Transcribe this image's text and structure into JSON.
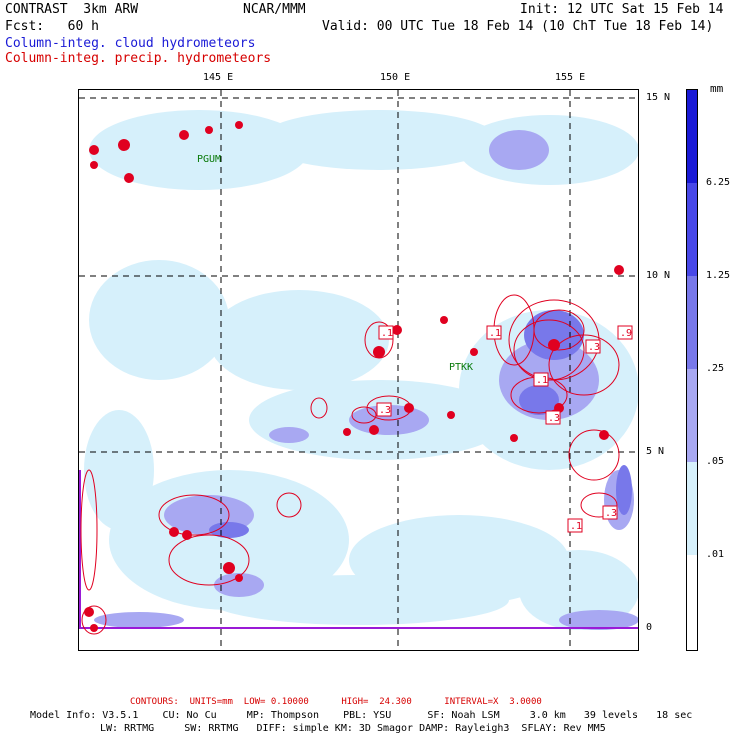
{
  "header": {
    "model": "CONTRAST  3km ARW",
    "org": "NCAR/MMM",
    "init": "Init: 12 UTC Sat 15 Feb 14",
    "fcst": "Fcst:   60 h",
    "valid": "Valid: 00 UTC Tue 18 Feb 14 (10 ChT Tue 18 Feb 14)",
    "field1": "Column-integ. cloud hydrometeors",
    "field2": "Column-integ. precip. hydrometeors"
  },
  "axes": {
    "lon_labels": [
      "145 E",
      "150 E",
      "155 E"
    ],
    "lat_labels": [
      "15 N",
      "10 N",
      "5 N",
      "0"
    ]
  },
  "stations": [
    "PGUM",
    "PTKK"
  ],
  "contour_labels": [
    ".1",
    ".1",
    ".3",
    ".9",
    ".1",
    ".3",
    ".3",
    ".1",
    ".3"
  ],
  "colorbar": {
    "unit": "mm",
    "levels": [
      "6.25",
      "1.25",
      ".25",
      ".05",
      ".01"
    ],
    "colors": [
      "#1a1ad6",
      "#4848e8",
      "#7878ea",
      "#a8a8f2",
      "#d6f0fb",
      "#ffffff"
    ]
  },
  "footer": {
    "contours": "CONTOURS:  UNITS=mm  LOW= 0.10000      HIGH=  24.300      INTERVAL=X  3.0000",
    "info1": "Model Info: V3.5.1    CU: No Cu     MP: Thompson    PBL: YSU      SF: Noah LSM     3.0 km   39 levels   18 sec",
    "info2": "LW: RRTMG     SW: RRTMG   DIFF: simple KM: 3D Smagor DAMP: Rayleigh3  SFLAY: Rev MM5"
  }
}
